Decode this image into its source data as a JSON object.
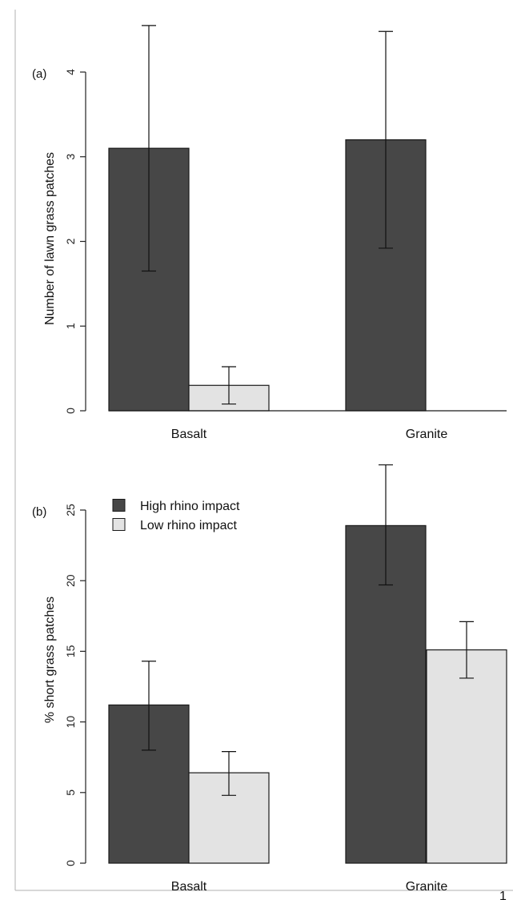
{
  "figure": {
    "page_number": "1"
  },
  "chart_data": [
    {
      "type": "bar",
      "panel_label": "(a)",
      "ylabel": "Number of lawn grass patches",
      "categories": [
        "Basalt",
        "Granite"
      ],
      "yticks": [
        "0",
        "1",
        "2",
        "3",
        "4"
      ],
      "ylim": [
        0,
        4.6
      ],
      "series": [
        {
          "name": "High rhino impact",
          "values": [
            3.1,
            3.2
          ],
          "err_low": [
            1.65,
            1.92
          ],
          "err_high": [
            4.55,
            4.48
          ]
        },
        {
          "name": "Low rhino impact",
          "values": [
            0.3,
            0.0
          ],
          "err_low": [
            0.08,
            null
          ],
          "err_high": [
            0.52,
            null
          ]
        }
      ],
      "colors": [
        "#474747",
        "#e3e3e3"
      ],
      "legend": "none"
    },
    {
      "type": "bar",
      "panel_label": "(b)",
      "ylabel": "% short grass patches",
      "categories": [
        "Basalt",
        "Granite"
      ],
      "yticks": [
        "0",
        "5",
        "10",
        "15",
        "20",
        "25"
      ],
      "ylim": [
        0,
        27
      ],
      "series": [
        {
          "name": "High rhino impact",
          "values": [
            11.2,
            23.9
          ],
          "err_low": [
            8.0,
            19.7
          ],
          "err_high": [
            14.3,
            28.2
          ]
        },
        {
          "name": "Low rhino impact",
          "values": [
            6.4,
            15.1
          ],
          "err_low": [
            4.8,
            13.1
          ],
          "err_high": [
            7.9,
            17.1
          ]
        }
      ],
      "colors": [
        "#474747",
        "#e3e3e3"
      ],
      "legend": "top-left"
    }
  ]
}
